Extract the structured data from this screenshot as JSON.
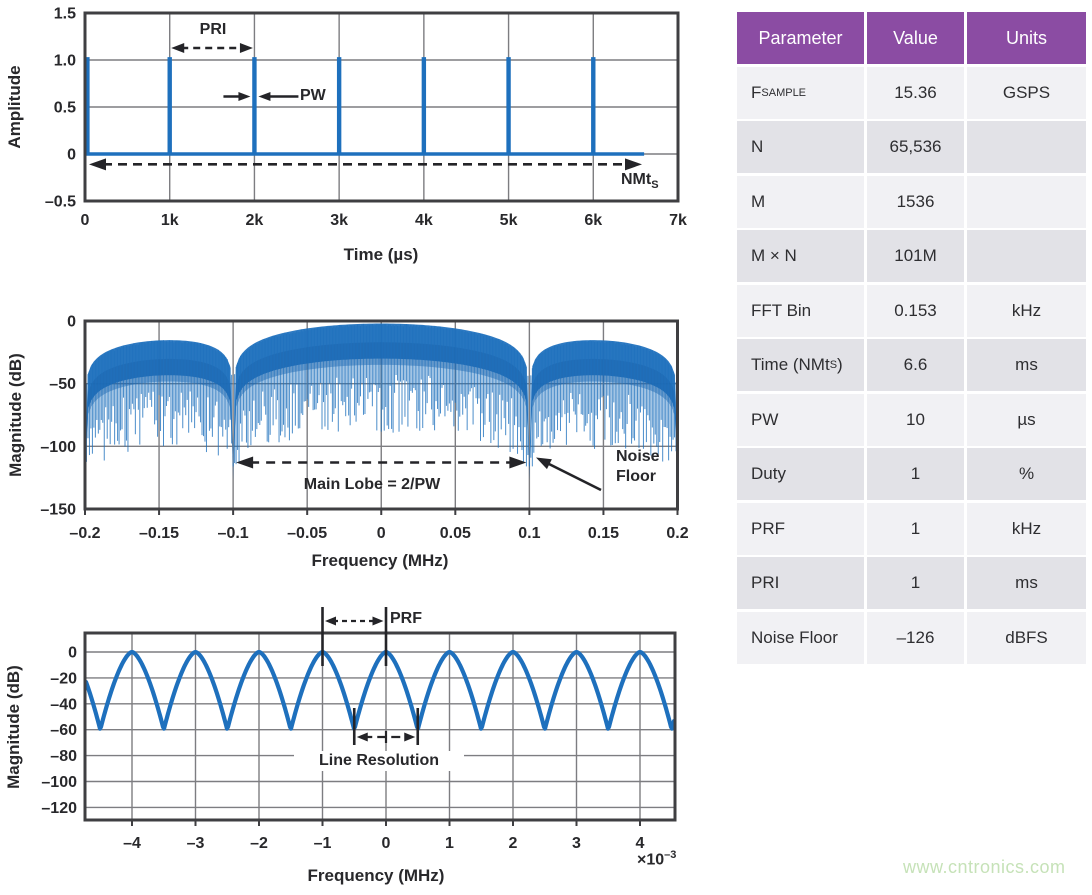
{
  "page": {
    "watermark": "www.cntronics.com"
  },
  "colors": {
    "blue": "#1e70bd",
    "blue_dark": "#16589f",
    "grid": "#7d7d81",
    "frame": "#3f3f42",
    "ink": "#28282b",
    "table_header_bg": "#8b4ca3",
    "row_light": "#f1f1f4",
    "row_dark": "#e2e2e7",
    "watermark": "#c6e2b8"
  },
  "chart_data": [
    {
      "id": "pulse-train",
      "type": "line",
      "xlabel": "Time (µs)",
      "ylabel": "Amplitude",
      "xlim": [
        0,
        7000
      ],
      "ylim": [
        -0.5,
        1.5
      ],
      "xticks": [
        {
          "v": 0,
          "label": "0"
        },
        {
          "v": 1000,
          "label": "1k"
        },
        {
          "v": 2000,
          "label": "2k"
        },
        {
          "v": 3000,
          "label": "3k"
        },
        {
          "v": 4000,
          "label": "4k"
        },
        {
          "v": 5000,
          "label": "5k"
        },
        {
          "v": 6000,
          "label": "6k"
        },
        {
          "v": 7000,
          "label": "7k"
        }
      ],
      "yticks": [
        {
          "v": 1.5,
          "label": "1.5"
        },
        {
          "v": 1.0,
          "label": "1.0"
        },
        {
          "v": 0.5,
          "label": "0.5"
        },
        {
          "v": 0,
          "label": "0"
        },
        {
          "v": -0.5,
          "label": "–0.5"
        }
      ],
      "series": [
        {
          "name": "pulse train",
          "pulse_positions_us": [
            0,
            1000,
            2000,
            3000,
            4000,
            5000,
            6000
          ],
          "pulse_amplitude": 1.03,
          "pulse_width_us": 10,
          "baseline_amplitude": 0,
          "record_end_us": 6600
        }
      ],
      "annotations": [
        {
          "name": "pri",
          "label": "PRI",
          "type": "dashed_double_arrow",
          "x_from_us": 1000,
          "x_to_us": 2000,
          "y_amp": 1.12
        },
        {
          "name": "pw",
          "label": "PW",
          "type": "converging_arrows",
          "x_us": 2000,
          "y_amp": 0.62
        },
        {
          "name": "nmts",
          "label_main": "NMt",
          "label_sub": "S",
          "type": "dashed_double_arrow",
          "x_from_us": 50,
          "x_to_us": 6570,
          "y_amp": -0.11
        }
      ]
    },
    {
      "id": "pulse-spectrum",
      "type": "area",
      "xlabel": "Frequency (MHz)",
      "ylabel": "Magnitude (dB)",
      "xlim": [
        -0.2,
        0.2
      ],
      "ylim": [
        -150,
        0
      ],
      "xticks": [
        {
          "v": -0.2,
          "label": "–0.2"
        },
        {
          "v": -0.15,
          "label": "–0.15"
        },
        {
          "v": -0.1,
          "label": "–0.1"
        },
        {
          "v": -0.05,
          "label": "–0.05"
        },
        {
          "v": 0,
          "label": "0"
        },
        {
          "v": 0.05,
          "label": "0.05"
        },
        {
          "v": 0.1,
          "label": "0.1"
        },
        {
          "v": 0.15,
          "label": "0.15"
        },
        {
          "v": 0.2,
          "label": "0.2"
        }
      ],
      "yticks": [
        {
          "v": 0,
          "label": "0"
        },
        {
          "v": -50,
          "label": "–50"
        },
        {
          "v": -100,
          "label": "–100"
        },
        {
          "v": -150,
          "label": "–150"
        }
      ],
      "spectrum": {
        "envelope": "sinc",
        "pulse_width_us": 10,
        "first_null_mhz": 0.1,
        "main_lobe_width_mhz": 0.2,
        "comb_spacing_mhz": 0.001,
        "peak_db": -2,
        "null_depth_db": -112,
        "band_depth_db": 28
      },
      "annotations": [
        {
          "name": "main-lobe",
          "label": "Main Lobe = 2/PW",
          "type": "dashed_double_arrow",
          "x_from_mhz": -0.1,
          "x_to_mhz": 0.1,
          "y_db": -112
        },
        {
          "name": "noise-floor",
          "label_lines": [
            "Noise",
            "Floor"
          ],
          "type": "callout_arrow",
          "point_mhz": 0.1,
          "point_db": -107
        }
      ]
    },
    {
      "id": "zoomed-spectrum",
      "type": "line",
      "xlabel": "Frequency (MHz)",
      "x_multiplier_label_base": "×10",
      "x_multiplier_label_exp": "–3",
      "ylabel": "Magnitude (dB)",
      "xlim_e3": [
        -4.72,
        4.55
      ],
      "ylim": [
        -130,
        15
      ],
      "xticks": [
        {
          "v": -4,
          "label": "–4"
        },
        {
          "v": -3,
          "label": "–3"
        },
        {
          "v": -2,
          "label": "–2"
        },
        {
          "v": -1,
          "label": "–1"
        },
        {
          "v": 0,
          "label": "0"
        },
        {
          "v": 1,
          "label": "1"
        },
        {
          "v": 2,
          "label": "2"
        },
        {
          "v": 3,
          "label": "3"
        },
        {
          "v": 4,
          "label": "4"
        }
      ],
      "yticks": [
        {
          "v": 0,
          "label": "0"
        },
        {
          "v": -20,
          "label": "–20"
        },
        {
          "v": -40,
          "label": "–40"
        },
        {
          "v": -60,
          "label": "–60"
        },
        {
          "v": -80,
          "label": "–80"
        },
        {
          "v": -100,
          "label": "–100"
        },
        {
          "v": -120,
          "label": "–120"
        }
      ],
      "line": {
        "peak_spacing_khz": 1,
        "peak_db": 0,
        "null_db": -60,
        "lobe_exponent": 1.6
      },
      "annotations": [
        {
          "name": "prf",
          "label": "PRF",
          "type": "dashed_double_arrow_with_bars",
          "x_from": -1,
          "x_to": 0
        },
        {
          "name": "line-resolution",
          "label": "Line Resolution",
          "type": "double_arrow_with_bars",
          "x_from": -0.5,
          "x_to": 0.5
        }
      ]
    }
  ],
  "table": {
    "headers": [
      "Parameter",
      "Value",
      "Units"
    ],
    "rows": [
      {
        "param": "F",
        "param_sub": "SAMPLE",
        "value": "15.36",
        "units": "GSPS"
      },
      {
        "param": "N",
        "value": "65,536",
        "units": ""
      },
      {
        "param": "M",
        "value": "1536",
        "units": ""
      },
      {
        "param": "M × N",
        "value": "101M",
        "units": ""
      },
      {
        "param": "FFT Bin",
        "value": "0.153",
        "units": "kHz"
      },
      {
        "param": "Time (NMt",
        "param_sub": "S",
        "param_suffix": ")",
        "value": "6.6",
        "units": "ms"
      },
      {
        "param": "PW",
        "value": "10",
        "units": "µs"
      },
      {
        "param": "Duty",
        "value": "1",
        "units": "%"
      },
      {
        "param": "PRF",
        "value": "1",
        "units": "kHz"
      },
      {
        "param": "PRI",
        "value": "1",
        "units": "ms"
      },
      {
        "param": "Noise Floor",
        "value": "–126",
        "units": "dBFS"
      }
    ]
  }
}
